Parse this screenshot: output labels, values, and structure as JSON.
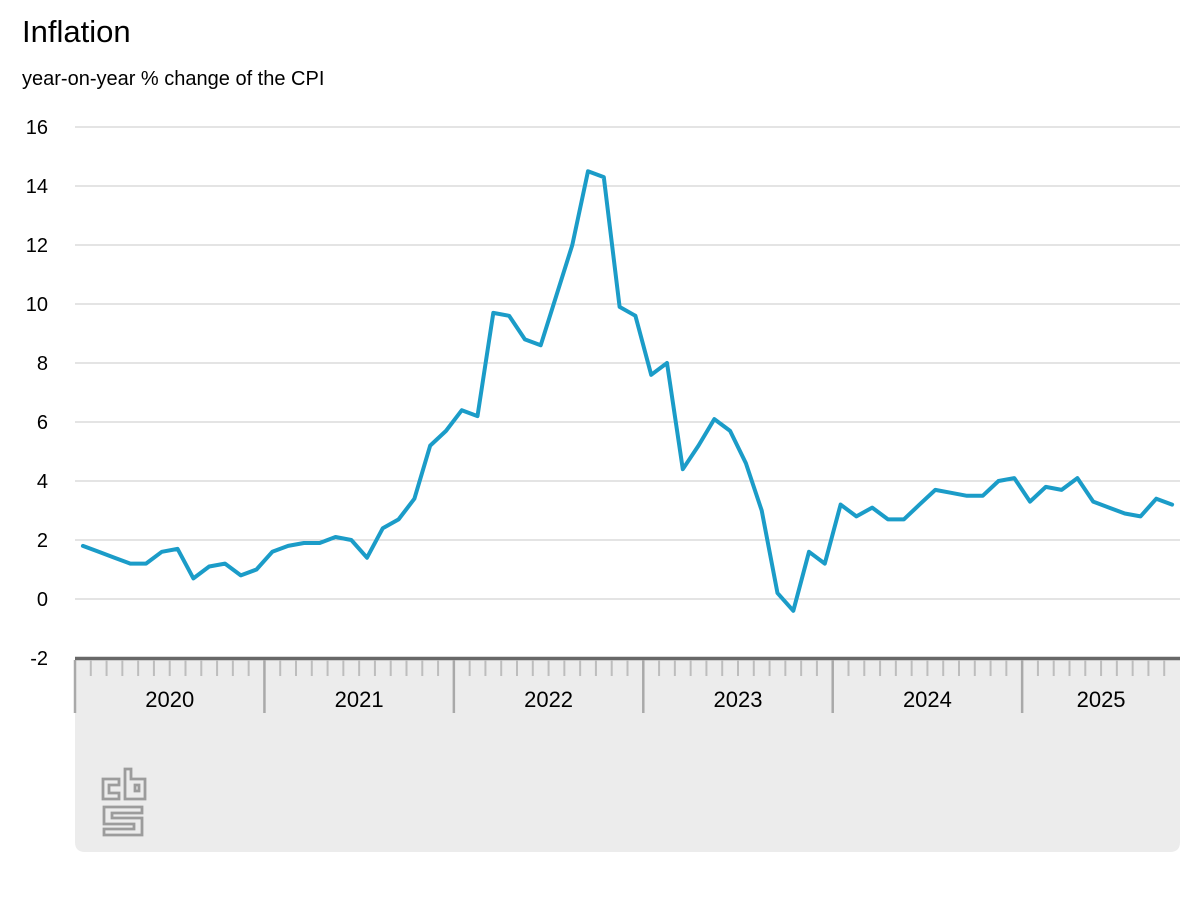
{
  "page": {
    "title": "Inflation"
  },
  "chart_data": {
    "type": "line",
    "title": "Inflation",
    "subtitle": "year-on-year % change of the CPI",
    "unit": "%",
    "x_start": "2020-01",
    "x_end": "2025-10",
    "year_labels": [
      "2020",
      "2021",
      "2022",
      "2023",
      "2024",
      "2025"
    ],
    "y_ticks": [
      16,
      14,
      12,
      10,
      8,
      6,
      4,
      2,
      0,
      -2
    ],
    "ylim": [
      -2,
      16
    ],
    "grid": "horizontal",
    "legend_position": "none",
    "line_color": "#1b9cc8",
    "series": [
      {
        "name": "CPI year-on-year % change",
        "values": [
          1.8,
          1.6,
          1.4,
          1.2,
          1.2,
          1.6,
          1.7,
          0.7,
          1.1,
          1.2,
          0.8,
          1.0,
          1.6,
          1.8,
          1.9,
          1.9,
          2.1,
          2.0,
          1.4,
          2.4,
          2.7,
          3.4,
          5.2,
          5.7,
          6.4,
          6.2,
          9.7,
          9.6,
          8.8,
          8.6,
          10.3,
          12.0,
          14.5,
          14.3,
          9.9,
          9.6,
          7.6,
          8.0,
          4.4,
          5.2,
          6.1,
          5.7,
          4.6,
          3.0,
          0.2,
          -0.4,
          1.6,
          1.2,
          3.2,
          2.8,
          3.1,
          2.7,
          2.7,
          3.2,
          3.7,
          3.6,
          3.5,
          3.5,
          4.0,
          4.1,
          3.3,
          3.8,
          3.7,
          4.1,
          3.3,
          3.1,
          2.9,
          2.8,
          3.4,
          3.2
        ]
      }
    ]
  },
  "branding": {
    "logo": "cbs-logo"
  }
}
